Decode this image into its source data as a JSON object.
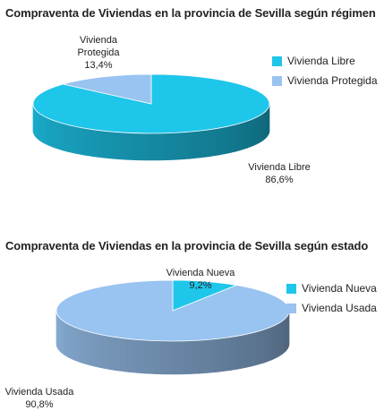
{
  "chart_data": [
    {
      "type": "pie",
      "title": "Compraventa de Viviendas en la provincia de Sevilla según régimen",
      "slices": [
        {
          "name": "Vivienda Libre",
          "value": 86.6,
          "label": "86,6%",
          "color": "#1ec6ea"
        },
        {
          "name": "Vivienda Protegida",
          "value": 13.4,
          "label": "13,4%",
          "color": "#99c3f0"
        }
      ],
      "legend": "right"
    },
    {
      "type": "pie",
      "title": "Compraventa de Viviendas en la provincia de Sevilla según estado",
      "slices": [
        {
          "name": "Vivienda Nueva",
          "value": 9.2,
          "label": "9,2%",
          "color": "#1ec6ea"
        },
        {
          "name": "Vivienda Usada",
          "value": 90.8,
          "label": "90,8%",
          "color": "#99c3f0"
        }
      ],
      "legend": "right"
    }
  ]
}
